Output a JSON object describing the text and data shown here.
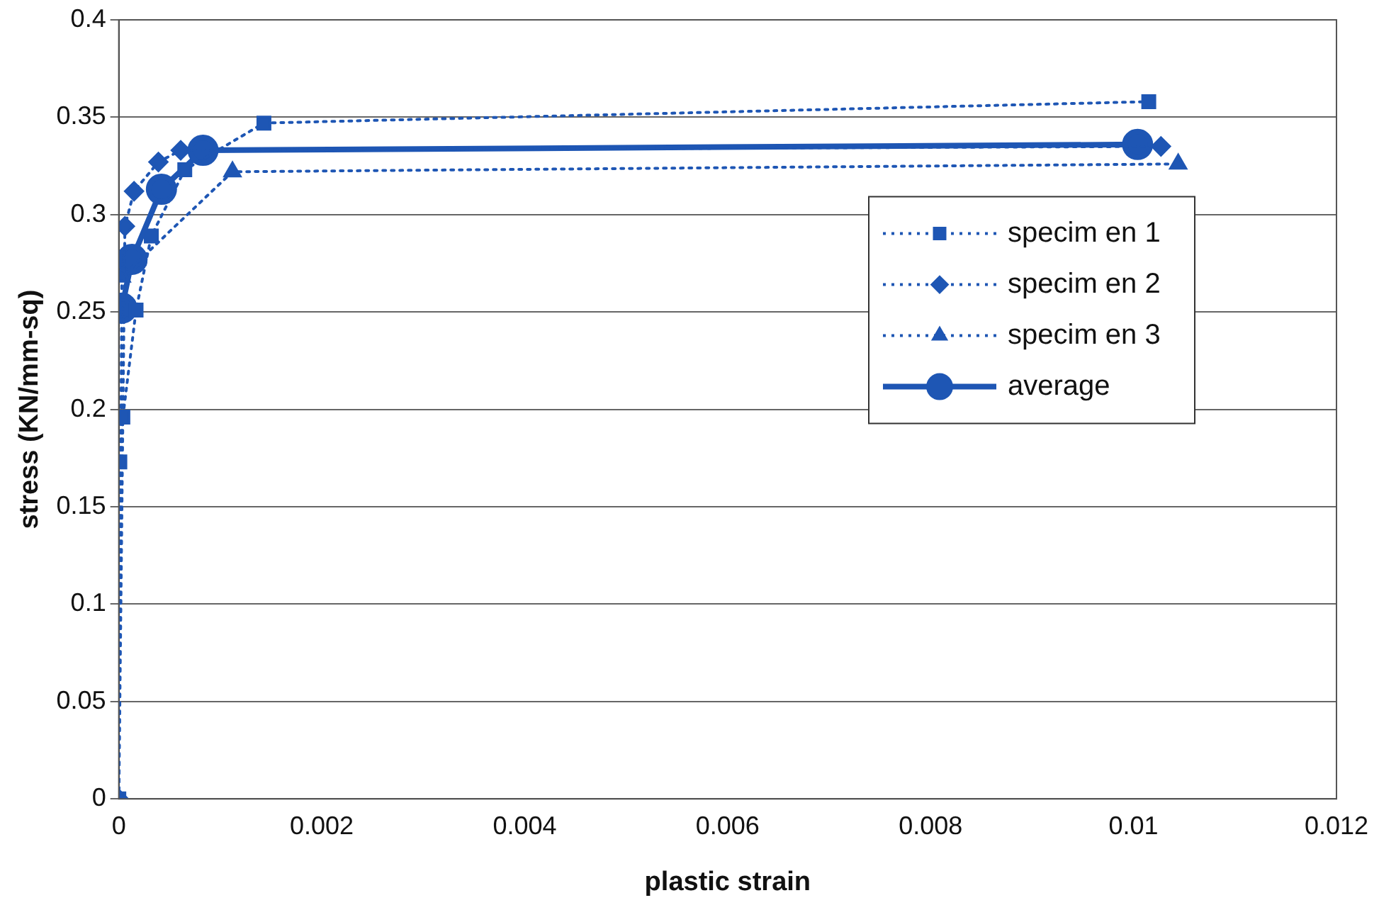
{
  "chart_data": {
    "type": "line",
    "xlabel": "plastic strain",
    "ylabel": "stress (KN/mm-sq)",
    "xlim": [
      0,
      0.012
    ],
    "xticks": [
      0,
      0.002,
      0.004,
      0.006,
      0.008,
      0.01,
      0.012
    ],
    "ylim": [
      0,
      0.4
    ],
    "yticks": [
      0,
      0.05,
      0.1,
      0.15,
      0.2,
      0.25,
      0.3,
      0.35,
      0.4
    ],
    "grid": "y",
    "legend": "right",
    "series": [
      {
        "name": "specim en 1",
        "color": "#1e56b4",
        "marker": "square",
        "line_style": "dotted",
        "x": [
          0,
          1e-05,
          4e-05,
          0.00017,
          0.00032,
          0.00065,
          0.00143,
          0.01015
        ],
        "values": [
          0,
          0.173,
          0.196,
          0.251,
          0.289,
          0.323,
          0.347,
          0.358
        ]
      },
      {
        "name": "specim en 2",
        "color": "#1e56b4",
        "marker": "diamond",
        "line_style": "dotted",
        "x": [
          0,
          6e-05,
          0.00015,
          0.00039,
          0.00061,
          0.01027
        ],
        "values": [
          0,
          0.294,
          0.312,
          0.327,
          0.333,
          0.335
        ]
      },
      {
        "name": "specim en 3",
        "color": "#1e56b4",
        "marker": "triangle",
        "line_style": "dotted",
        "x": [
          0,
          3e-05,
          0.00112,
          0.01044
        ],
        "values": [
          0,
          0.268,
          0.322,
          0.326
        ]
      },
      {
        "name": "average",
        "color": "#1e56b4",
        "marker": "circle",
        "line_style": "solid",
        "x": [
          3e-05,
          0.00013,
          0.00042,
          0.00083,
          0.01004
        ],
        "values": [
          0.252,
          0.277,
          0.313,
          0.333,
          0.336
        ]
      }
    ]
  }
}
